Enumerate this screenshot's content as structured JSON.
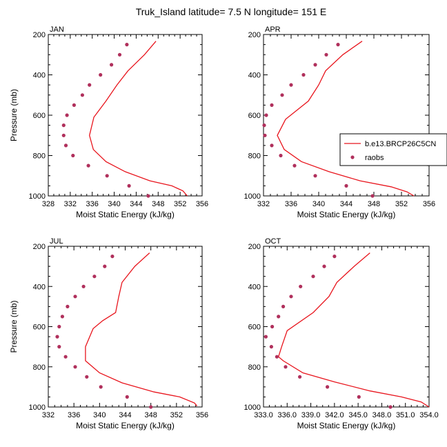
{
  "figure": {
    "title": "Truk_Island  latitude= 7.5 N longitude= 151 E"
  },
  "legend": {
    "placement": "right, beside APR panel",
    "model_label": "b.e13.BRCP26C5CN",
    "obs_label": "raobs",
    "model_color": "#e8141c",
    "obs_color": "#b0305c"
  },
  "chart_data": [
    {
      "type": "line",
      "panel": "JAN",
      "xlabel": "Moist Static Energy (kJ/kg)",
      "ylabel": "Pressure (mb)",
      "xlim": [
        328,
        356
      ],
      "ylim": [
        1000,
        200
      ],
      "xticks": [
        328,
        332,
        336,
        340,
        344,
        348,
        352,
        356
      ],
      "xtick_labels": [
        "328",
        "332",
        "336",
        "340",
        "344",
        "348",
        "352",
        "356"
      ],
      "yticks": [
        200,
        400,
        600,
        800,
        1000
      ],
      "ytick_labels": [
        "200",
        "400",
        "600",
        "800",
        "1000"
      ],
      "series": [
        {
          "name": "b.e13.BRCP26C5CN",
          "kind": "line",
          "points": [
            [
              347.6,
              233
            ],
            [
              345.5,
              300
            ],
            [
              342.5,
              380
            ],
            [
              340.5,
              450
            ],
            [
              338.5,
              530
            ],
            [
              336.3,
              610
            ],
            [
              335.5,
              700
            ],
            [
              336.2,
              770
            ],
            [
              338.5,
              830
            ],
            [
              342,
              880
            ],
            [
              346.5,
              925
            ],
            [
              350.5,
              950
            ],
            [
              352.5,
              975
            ],
            [
              353.3,
              1000
            ]
          ]
        },
        {
          "name": "raobs",
          "kind": "markers",
          "points": [
            [
              342.3,
              250
            ],
            [
              341,
              300
            ],
            [
              339.5,
              350
            ],
            [
              337.5,
              400
            ],
            [
              335.5,
              450
            ],
            [
              334.2,
              500
            ],
            [
              332.7,
              550
            ],
            [
              331.4,
              600
            ],
            [
              330.8,
              650
            ],
            [
              330.8,
              700
            ],
            [
              331.2,
              750
            ],
            [
              332.5,
              800
            ],
            [
              335.3,
              850
            ],
            [
              338.7,
              900
            ],
            [
              342.7,
              950
            ],
            [
              346.2,
              1000
            ]
          ]
        }
      ]
    },
    {
      "type": "line",
      "panel": "APR",
      "xlabel": "Moist Static Energy (kJ/kg)",
      "ylabel": "",
      "xlim": [
        332,
        356
      ],
      "ylim": [
        1000,
        200
      ],
      "xticks": [
        332,
        336,
        340,
        344,
        348,
        352,
        356
      ],
      "xtick_labels": [
        "332",
        "336",
        "340",
        "344",
        "348",
        "352",
        "356"
      ],
      "yticks": [
        200,
        400,
        600,
        800,
        1000
      ],
      "ytick_labels": [
        "200",
        "400",
        "600",
        "800",
        "1000"
      ],
      "series": [
        {
          "name": "b.e13.BRCP26C5CN",
          "kind": "line",
          "points": [
            [
              346.3,
              233
            ],
            [
              343.5,
              300
            ],
            [
              341,
              380
            ],
            [
              340,
              450
            ],
            [
              338.5,
              530
            ],
            [
              335.2,
              620
            ],
            [
              334,
              700
            ],
            [
              335,
              770
            ],
            [
              337.5,
              830
            ],
            [
              341.5,
              880
            ],
            [
              346,
              925
            ],
            [
              350.5,
              955
            ],
            [
              352.8,
              980
            ],
            [
              353.8,
              1000
            ]
          ]
        },
        {
          "name": "raobs",
          "kind": "markers",
          "points": [
            [
              342.8,
              250
            ],
            [
              341.1,
              300
            ],
            [
              339.5,
              350
            ],
            [
              337.8,
              400
            ],
            [
              336,
              450
            ],
            [
              334.7,
              500
            ],
            [
              333.2,
              550
            ],
            [
              332.4,
              600
            ],
            [
              332.1,
              650
            ],
            [
              332.2,
              700
            ],
            [
              333.2,
              750
            ],
            [
              334.5,
              800
            ],
            [
              336.5,
              850
            ],
            [
              339.5,
              900
            ],
            [
              344,
              950
            ],
            [
              347.8,
              1000
            ]
          ]
        }
      ]
    },
    {
      "type": "line",
      "panel": "JUL",
      "xlabel": "Moist Static Energy (kJ/kg)",
      "ylabel": "Pressure (mb)",
      "xlim": [
        332,
        356
      ],
      "ylim": [
        1000,
        200
      ],
      "xticks": [
        332,
        336,
        340,
        344,
        348,
        352,
        356
      ],
      "xtick_labels": [
        "332",
        "336",
        "340",
        "344",
        "348",
        "352",
        "356"
      ],
      "yticks": [
        200,
        400,
        600,
        800,
        1000
      ],
      "ytick_labels": [
        "200",
        "400",
        "600",
        "800",
        "1000"
      ],
      "series": [
        {
          "name": "b.e13.BRCP26C5CN",
          "kind": "line",
          "points": [
            [
              347.8,
              233
            ],
            [
              345.5,
              300
            ],
            [
              343.5,
              380
            ],
            [
              343,
              450
            ],
            [
              342.5,
              530
            ],
            [
              340.5,
              570
            ],
            [
              339,
              610
            ],
            [
              337.8,
              700
            ],
            [
              337.8,
              770
            ],
            [
              340,
              830
            ],
            [
              343.5,
              880
            ],
            [
              348.5,
              925
            ],
            [
              352.5,
              950
            ],
            [
              354.8,
              980
            ],
            [
              355.2,
              995
            ]
          ]
        },
        {
          "name": "raobs",
          "kind": "markers",
          "points": [
            [
              342,
              250
            ],
            [
              340.8,
              300
            ],
            [
              339.2,
              350
            ],
            [
              337.5,
              400
            ],
            [
              336.2,
              450
            ],
            [
              335,
              500
            ],
            [
              334.2,
              550
            ],
            [
              333.7,
              600
            ],
            [
              333.4,
              650
            ],
            [
              333.7,
              700
            ],
            [
              334.7,
              750
            ],
            [
              336.2,
              800
            ],
            [
              338,
              850
            ],
            [
              340.2,
              900
            ],
            [
              344.3,
              950
            ],
            [
              348,
              1000
            ]
          ]
        }
      ]
    },
    {
      "type": "line",
      "panel": "OCT",
      "xlabel": "Moist Static Energy (kJ/kg)",
      "ylabel": "",
      "xlim": [
        333,
        354
      ],
      "ylim": [
        1000,
        200
      ],
      "xticks": [
        333,
        336,
        339,
        342,
        345,
        348,
        351,
        354
      ],
      "xtick_labels": [
        "333.0",
        "336.0",
        "339.0",
        "342.0",
        "345.0",
        "348.0",
        "351.0",
        "354.0"
      ],
      "yticks": [
        200,
        400,
        600,
        800,
        1000
      ],
      "ytick_labels": [
        "200",
        "400",
        "600",
        "800",
        "1000"
      ],
      "series": [
        {
          "name": "b.e13.BRCP26C5CN",
          "kind": "line",
          "points": [
            [
              346.5,
              233
            ],
            [
              344.5,
              300
            ],
            [
              342.3,
              380
            ],
            [
              341.3,
              450
            ],
            [
              339.3,
              530
            ],
            [
              336,
              620
            ],
            [
              335.3,
              700
            ],
            [
              334.9,
              750
            ],
            [
              335.5,
              770
            ],
            [
              338,
              830
            ],
            [
              342,
              875
            ],
            [
              346.5,
              920
            ],
            [
              350.5,
              950
            ],
            [
              353,
              975
            ],
            [
              354,
              1000
            ]
          ]
        },
        {
          "name": "raobs",
          "kind": "markers",
          "points": [
            [
              342,
              250
            ],
            [
              340.7,
              300
            ],
            [
              339.3,
              350
            ],
            [
              337.7,
              400
            ],
            [
              336.5,
              450
            ],
            [
              335.5,
              500
            ],
            [
              334.9,
              550
            ],
            [
              334.1,
              600
            ],
            [
              333.3,
              650
            ],
            [
              334,
              700
            ],
            [
              334.7,
              750
            ],
            [
              335.8,
              800
            ],
            [
              337.6,
              850
            ],
            [
              341.1,
              900
            ],
            [
              345.1,
              950
            ],
            [
              349.1,
              1000
            ]
          ]
        }
      ]
    }
  ]
}
